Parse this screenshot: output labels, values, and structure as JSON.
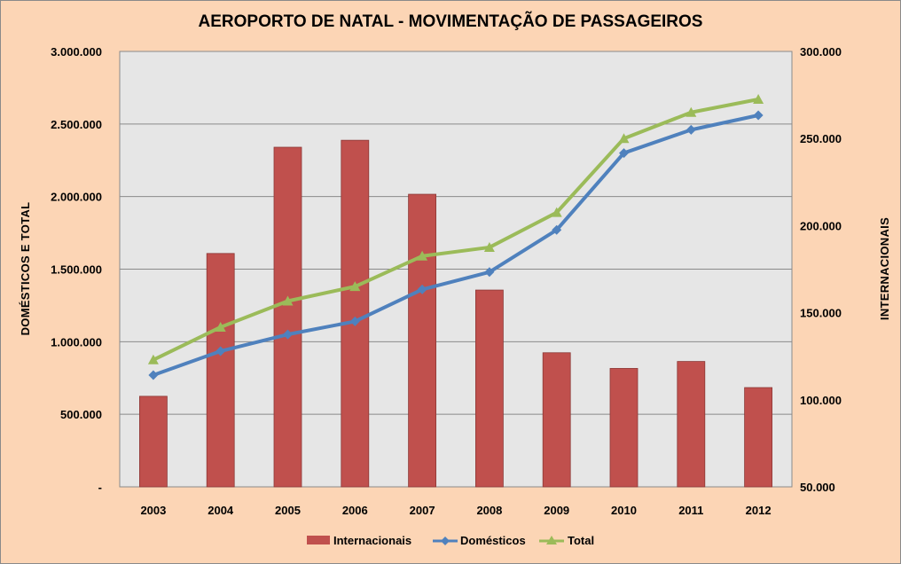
{
  "chart_data": {
    "type": "bar+line",
    "title": "AEROPORTO DE NATAL - MOVIMENTAÇÃO DE PASSAGEIROS",
    "categories": [
      "2003",
      "2004",
      "2005",
      "2006",
      "2007",
      "2008",
      "2009",
      "2010",
      "2011",
      "2012"
    ],
    "ylabel_left": "DOMÉSTICOS E TOTAL",
    "ylabel_right": "INTERNACIONAIS",
    "ylim_left": [
      0,
      3000000
    ],
    "ylim_right": [
      50000,
      300000
    ],
    "yticks_left": [
      "-",
      "500.000",
      "1.000.000",
      "1.500.000",
      "2.000.000",
      "2.500.000",
      "3.000.000"
    ],
    "yticks_right": [
      "50.000",
      "100.000",
      "150.000",
      "200.000",
      "250.000",
      "300.000"
    ],
    "grid": true,
    "legend_position": "bottom",
    "series": [
      {
        "name": "Internacionais",
        "kind": "bar",
        "axis": "right",
        "color": "#c0504d",
        "values": [
          102000,
          184000,
          245000,
          249000,
          218000,
          163000,
          127000,
          118000,
          122000,
          107000
        ]
      },
      {
        "name": "Domésticos",
        "kind": "line",
        "axis": "left",
        "color": "#4f81bd",
        "marker": "diamond",
        "values": [
          770000,
          935000,
          1050000,
          1140000,
          1360000,
          1480000,
          1770000,
          2300000,
          2460000,
          2560000
        ]
      },
      {
        "name": "Total",
        "kind": "line",
        "axis": "left",
        "color": "#9bbb59",
        "marker": "triangle",
        "values": [
          875000,
          1100000,
          1280000,
          1380000,
          1590000,
          1650000,
          1890000,
          2400000,
          2580000,
          2670000
        ]
      }
    ]
  }
}
